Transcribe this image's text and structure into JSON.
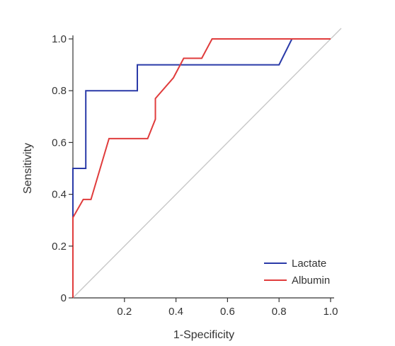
{
  "chart_data": {
    "type": "line",
    "title": "",
    "xlabel": "1-Specificity",
    "ylabel": "Sensitivity",
    "xlim": [
      0,
      1
    ],
    "ylim": [
      0,
      1
    ],
    "x_ticks": [
      0.2,
      0.4,
      0.6,
      0.8,
      1.0
    ],
    "x_tick_labels": [
      "0.2",
      "0.4",
      "0.6",
      "0.8",
      "1.0"
    ],
    "y_ticks": [
      0,
      0.2,
      0.4,
      0.6,
      0.8,
      1.0
    ],
    "y_tick_labels": [
      "0",
      "0.2",
      "0.4",
      "0.6",
      "0.8",
      "1.0"
    ],
    "grid": false,
    "legend_position": "bottom-right",
    "reference_line": {
      "x": [
        0,
        1
      ],
      "y": [
        0,
        1
      ],
      "color": "#c8c8c8"
    },
    "series": [
      {
        "name": "Lactate",
        "color": "#2a3aa8",
        "x": [
          0,
          0,
          0.05,
          0.05,
          0.25,
          0.25,
          0.8,
          0.85,
          1.0
        ],
        "y": [
          0,
          0.5,
          0.5,
          0.8,
          0.8,
          0.9,
          0.9,
          1.0,
          1.0
        ]
      },
      {
        "name": "Albumin",
        "color": "#e03c3c",
        "x": [
          0,
          0,
          0.04,
          0.07,
          0.14,
          0.29,
          0.32,
          0.32,
          0.39,
          0.43,
          0.5,
          0.54,
          1.0
        ],
        "y": [
          0,
          0.31,
          0.38,
          0.38,
          0.615,
          0.615,
          0.69,
          0.77,
          0.85,
          0.925,
          0.925,
          1.0,
          1.0
        ]
      }
    ]
  }
}
